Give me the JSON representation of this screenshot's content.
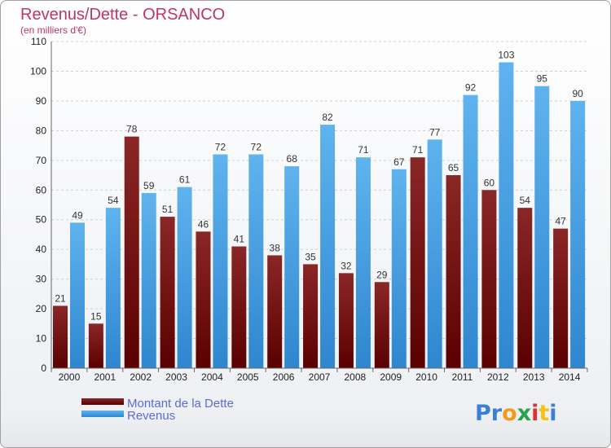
{
  "chart_data": {
    "type": "bar",
    "title": "Revenus/Dette - ORSANCO",
    "subtitle": "(en milliers d'€)",
    "categories": [
      "2000",
      "2001",
      "2002",
      "2003",
      "2004",
      "2005",
      "2006",
      "2007",
      "2008",
      "2009",
      "2010",
      "2011",
      "2012",
      "2013",
      "2014"
    ],
    "series": [
      {
        "name": "Montant de la Dette",
        "color": "#7a1212",
        "values": [
          21,
          15,
          78,
          51,
          46,
          41,
          38,
          35,
          32,
          29,
          71,
          65,
          60,
          54,
          47
        ]
      },
      {
        "name": "Revenus",
        "color": "#4aa3e6",
        "values": [
          49,
          54,
          59,
          61,
          72,
          72,
          68,
          82,
          71,
          67,
          77,
          92,
          103,
          95,
          90
        ]
      }
    ],
    "ylim": [
      0,
      110
    ],
    "yticks": [
      0,
      10,
      20,
      30,
      40,
      50,
      60,
      70,
      80,
      90,
      100,
      110
    ],
    "grid": true,
    "legend_position": "bottom-left"
  },
  "logo": {
    "letters": [
      "P",
      "r",
      "o",
      "x",
      "i",
      "t",
      "i"
    ],
    "colors": [
      "#3a7fd5",
      "#3a7fd5",
      "#f29a1b",
      "#2aa24a",
      "#d9312f",
      "#f2c21b",
      "#3a7fd5"
    ]
  }
}
